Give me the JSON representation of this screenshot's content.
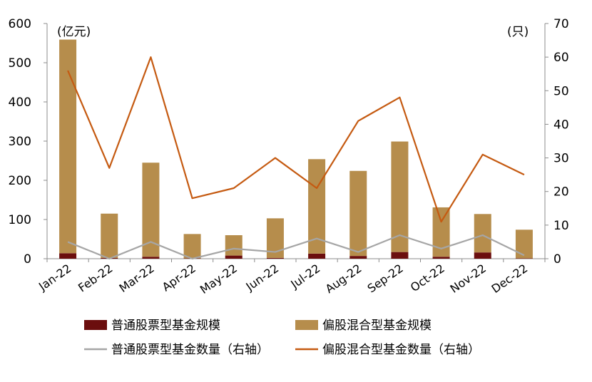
{
  "chart_data": {
    "type": "bar",
    "categories": [
      "Jan-22",
      "Feb-22",
      "Mar-22",
      "Apr-22",
      "May-22",
      "Jun-22",
      "Jul-22",
      "Aug-22",
      "Sep-22",
      "Oct-22",
      "Nov-22",
      "Dec-22"
    ],
    "left_axis": {
      "unit_label": "(亿元)",
      "ylim": [
        0,
        600
      ],
      "ticks": [
        "0",
        "100",
        "200",
        "300",
        "400",
        "500",
        "600"
      ]
    },
    "right_axis": {
      "unit_label": "(只)",
      "ylim": [
        0,
        70
      ],
      "ticks": [
        "0",
        "10",
        "20",
        "30",
        "40",
        "50",
        "60",
        "70"
      ]
    },
    "series": [
      {
        "name": "普通股票型基金规模",
        "kind": "bar",
        "axis": "left",
        "stack": "scale",
        "color": "#6b0e0e",
        "values": [
          14,
          2,
          5,
          1,
          8,
          2,
          13,
          7,
          17,
          5,
          16,
          1
        ]
      },
      {
        "name": "偏股混合型基金规模",
        "kind": "bar",
        "axis": "left",
        "stack": "scale",
        "color": "#b68d4c",
        "values": [
          545,
          113,
          240,
          62,
          52,
          101,
          241,
          217,
          282,
          126,
          98,
          73
        ]
      },
      {
        "name": "普通股票型基金数量（右轴）",
        "kind": "line",
        "axis": "right",
        "color": "#a6a6a6",
        "values": [
          5,
          0,
          5,
          0,
          3,
          2,
          6,
          2,
          7,
          3,
          7,
          1
        ]
      },
      {
        "name": "偏股混合型基金数量（右轴）",
        "kind": "line",
        "axis": "right",
        "color": "#c55a11",
        "values": [
          56,
          27,
          60,
          18,
          21,
          30,
          21,
          41,
          48,
          11,
          31,
          25
        ]
      }
    ],
    "grid": false,
    "legend_position": "bottom"
  }
}
